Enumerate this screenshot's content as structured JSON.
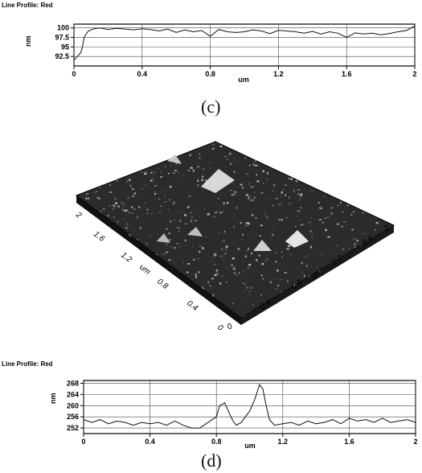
{
  "figure_c": {
    "panel_title": "Line Profile: Red",
    "caption": "(c)",
    "chart_data": {
      "type": "line",
      "xlabel": "um",
      "ylabel": "nm",
      "xlim": [
        0,
        2
      ],
      "ylim": [
        90,
        101
      ],
      "x_ticks": [
        "0",
        "0.4",
        "0.8",
        "1.2",
        "1.6",
        "2"
      ],
      "y_ticks": [
        "100",
        "97.5",
        "95",
        "92.5"
      ],
      "grid": true,
      "series": [
        {
          "x": [
            0,
            0.02,
            0.04,
            0.05,
            0.06,
            0.08,
            0.1,
            0.12,
            0.15,
            0.2,
            0.25,
            0.3,
            0.35,
            0.4,
            0.45,
            0.5,
            0.55,
            0.6,
            0.65,
            0.7,
            0.75,
            0.8,
            0.85,
            0.9,
            0.95,
            1.0,
            1.05,
            1.1,
            1.15,
            1.2,
            1.25,
            1.3,
            1.35,
            1.4,
            1.45,
            1.5,
            1.55,
            1.6,
            1.65,
            1.7,
            1.75,
            1.8,
            1.85,
            1.9,
            1.95,
            2.0
          ],
          "y": [
            91.5,
            92.5,
            93.5,
            95,
            97.5,
            99,
            99.5,
            99.8,
            100,
            99.6,
            99.9,
            99.7,
            99.5,
            99.8,
            99.6,
            99.2,
            99.7,
            98.8,
            99.5,
            99.0,
            99.3,
            97.8,
            99.6,
            99.0,
            98.8,
            99.0,
            99.5,
            99.2,
            98.5,
            99.4,
            99.2,
            99.0,
            98.6,
            99.1,
            98.4,
            99.0,
            98.6,
            97.5,
            98.7,
            98.4,
            98.6,
            98.2,
            98.5,
            99.0,
            99.3,
            100.5
          ]
        }
      ]
    }
  },
  "figure_3d": {
    "tick_labels_left": [
      "0",
      "0.4",
      "0.8",
      "um",
      "1.2",
      "1.6",
      "2"
    ],
    "tick_labels_right": [
      "0",
      "0.4",
      "0.8",
      "um",
      "1.2",
      "1.6",
      "2"
    ]
  },
  "figure_d": {
    "panel_title": "Line Profile: Red",
    "caption": "(d)",
    "chart_data": {
      "type": "line",
      "xlabel": "um",
      "ylabel": "nm",
      "xlim": [
        0,
        2
      ],
      "ylim": [
        250,
        269
      ],
      "x_ticks": [
        "0",
        "0.4",
        "0.8",
        "1.2",
        "1.6",
        "2"
      ],
      "y_ticks": [
        "268",
        "264",
        "260",
        "256",
        "252"
      ],
      "grid": true,
      "series": [
        {
          "x": [
            0,
            0.05,
            0.1,
            0.15,
            0.2,
            0.25,
            0.3,
            0.35,
            0.4,
            0.45,
            0.5,
            0.55,
            0.6,
            0.65,
            0.7,
            0.75,
            0.8,
            0.82,
            0.85,
            0.88,
            0.9,
            0.92,
            0.95,
            1.0,
            1.03,
            1.06,
            1.08,
            1.1,
            1.12,
            1.15,
            1.2,
            1.25,
            1.3,
            1.35,
            1.4,
            1.45,
            1.5,
            1.55,
            1.6,
            1.65,
            1.7,
            1.75,
            1.8,
            1.85,
            1.9,
            1.95,
            2.0
          ],
          "y": [
            255,
            254,
            255,
            253.5,
            254.5,
            254,
            253,
            254,
            253.5,
            254,
            253,
            254.5,
            253,
            252,
            252,
            254,
            256,
            260,
            261,
            257,
            254.5,
            253,
            254,
            258,
            262,
            267.5,
            266,
            260,
            255,
            253,
            253.5,
            254,
            253,
            254.5,
            253.5,
            254,
            255,
            253.5,
            255.5,
            254.5,
            255,
            254,
            255.5,
            254,
            254.5,
            255,
            254
          ]
        }
      ]
    }
  },
  "colors": {
    "line": "#111111",
    "grid": "#444444",
    "frame": "#000000"
  }
}
